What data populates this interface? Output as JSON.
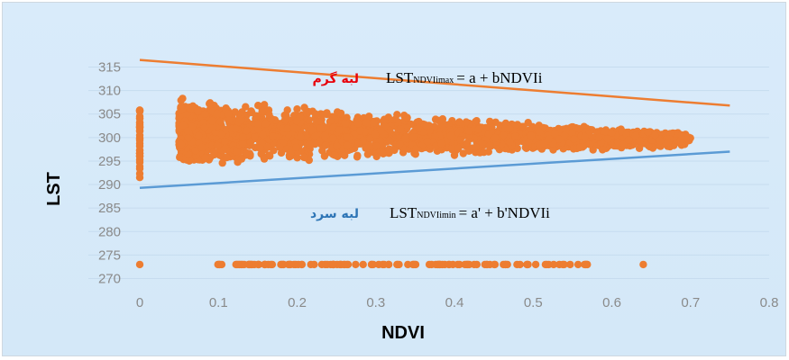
{
  "chart_data": {
    "type": "scatter",
    "xlabel": "NDVI",
    "ylabel": "LST",
    "xlim": [
      0,
      0.8
    ],
    "ylim": [
      268,
      317
    ],
    "x_ticks": [
      "0",
      "0.1",
      "0.2",
      "0.3",
      "0.4",
      "0.5",
      "0.6",
      "0.7",
      "0.8"
    ],
    "y_ticks": [
      "270",
      "275",
      "280",
      "285",
      "290",
      "295",
      "300",
      "305",
      "310",
      "315"
    ],
    "grid": true,
    "legend": "none",
    "colors": {
      "points": "#ed7d31",
      "warm_edge": "#ed7d31",
      "cold_edge": "#5b9bd5",
      "background": "#d6e9f8"
    },
    "lines": [
      {
        "name": "warm-edge",
        "x": [
          0,
          0.75
        ],
        "y": [
          316.5,
          306.8
        ]
      },
      {
        "name": "cold-edge",
        "x": [
          0,
          0.75
        ],
        "y": [
          289.3,
          297.0
        ]
      }
    ],
    "point_groups": {
      "x0_column": {
        "x": 0.0,
        "y_min": 291.5,
        "y_max": 307.0
      },
      "cloud": {
        "x_min": 0.05,
        "x_max": 0.7,
        "y_min_at_left": 294.0,
        "y_max_at_left": 308.5,
        "y_min_at_right": 298.0,
        "y_max_at_right": 301.0
      },
      "floor_row": {
        "y": 273.0,
        "x_min": 0.09,
        "x_max": 0.57,
        "outliers": [
          0.0,
          0.64
        ]
      }
    },
    "annotations": {
      "warm_label": "لبه گرم",
      "cold_label": "لبه سرد",
      "warm_eq": {
        "lst": "LST",
        "sub": "NDVIimax",
        "rest": "= a + bNDVIi"
      },
      "cold_eq": {
        "lst": "LST",
        "sub": "NDVIimin",
        "rest": "= a' + b'NDVIi"
      }
    }
  }
}
